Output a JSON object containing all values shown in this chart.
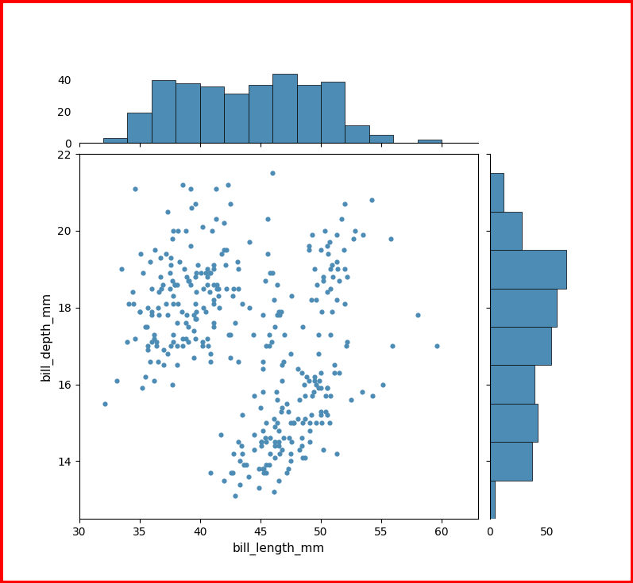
{
  "x_label": "bill_length_mm",
  "y_label": "bill_depth_mm",
  "scatter_color": "#4c8cb5",
  "hist_color": "#4c8cb5",
  "hist_edgecolor": "#000000",
  "scatter_alpha": 1.0,
  "scatter_size": 20,
  "background_color": "#ffffff",
  "fig_background": "#ffffff",
  "border_color": "#ff0000",
  "border_linewidth": 5,
  "figsize": [
    7.97,
    7.35
  ],
  "dpi": 100
}
